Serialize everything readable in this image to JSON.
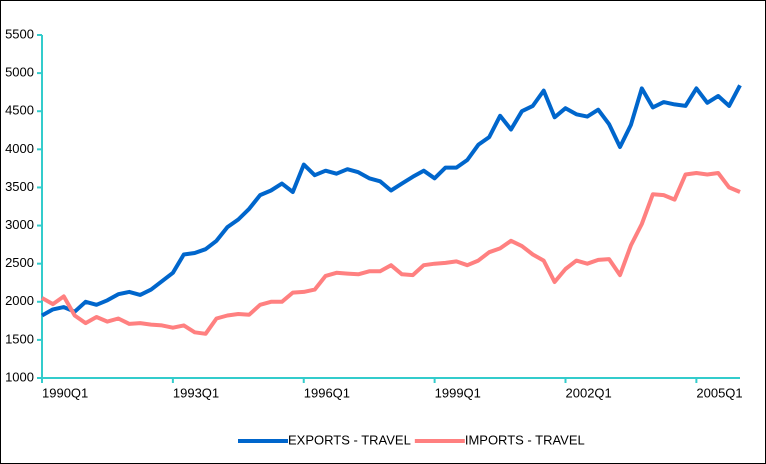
{
  "chart_data": {
    "type": "line",
    "categories": [
      "1990Q1",
      null,
      null,
      null,
      null,
      null,
      null,
      null,
      null,
      null,
      null,
      null,
      "1993Q1",
      null,
      null,
      null,
      null,
      null,
      null,
      null,
      null,
      null,
      null,
      null,
      "1996Q1",
      null,
      null,
      null,
      null,
      null,
      null,
      null,
      null,
      null,
      null,
      null,
      "1999Q1",
      null,
      null,
      null,
      null,
      null,
      null,
      null,
      null,
      null,
      null,
      null,
      "2002Q1",
      null,
      null,
      null,
      null,
      null,
      null,
      null,
      null,
      null,
      null,
      null,
      "2005Q1",
      null,
      null,
      null,
      null
    ],
    "series": [
      {
        "name": "EXPORTS - TRAVEL",
        "color": "#0066cc",
        "values": [
          1820,
          1900,
          1930,
          1870,
          2000,
          1960,
          2020,
          2100,
          2130,
          2090,
          2160,
          2270,
          2380,
          2620,
          2640,
          2690,
          2800,
          2980,
          3080,
          3220,
          3400,
          3460,
          3550,
          3440,
          3800,
          3660,
          3720,
          3680,
          3740,
          3700,
          3620,
          3580,
          3460,
          3550,
          3640,
          3720,
          3620,
          3760,
          3760,
          3860,
          4060,
          4160,
          4440,
          4260,
          4500,
          4570,
          4770,
          4420,
          4540,
          4460,
          4430,
          4520,
          4330,
          4030,
          4320,
          4800,
          4550,
          4620,
          4590,
          4570,
          4800,
          4610,
          4700,
          4570,
          4840
        ]
      },
      {
        "name": "IMPORTS - TRAVEL",
        "color": "#ff8080",
        "values": [
          2050,
          1970,
          2070,
          1820,
          1720,
          1800,
          1740,
          1780,
          1710,
          1720,
          1700,
          1690,
          1660,
          1690,
          1600,
          1580,
          1780,
          1820,
          1840,
          1830,
          1960,
          2000,
          2000,
          2120,
          2130,
          2160,
          2340,
          2380,
          2370,
          2360,
          2400,
          2400,
          2480,
          2360,
          2350,
          2480,
          2500,
          2510,
          2530,
          2480,
          2540,
          2650,
          2700,
          2800,
          2730,
          2620,
          2540,
          2260,
          2430,
          2540,
          2500,
          2550,
          2560,
          2350,
          2740,
          3020,
          3410,
          3400,
          3340,
          3670,
          3690,
          3670,
          3690,
          3500,
          3440
        ]
      }
    ],
    "ylim": [
      1000,
      5500
    ],
    "yticks": [
      1000,
      1500,
      2000,
      2500,
      3000,
      3500,
      4000,
      4500,
      5000,
      5500
    ],
    "axis_color": "#33cccc",
    "legend": "bottom"
  }
}
